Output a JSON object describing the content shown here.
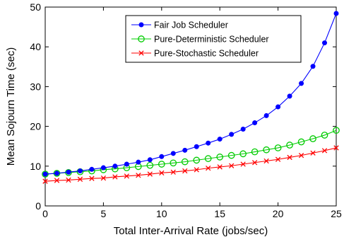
{
  "chart_data": {
    "type": "line",
    "title": "",
    "xlabel": "Total Inter-Arrival Rate (jobs/sec)",
    "ylabel": "Mean Sojourn Time (sec)",
    "xlim": [
      0,
      25
    ],
    "ylim": [
      0,
      50
    ],
    "xticks": [
      0,
      5,
      10,
      15,
      20,
      25
    ],
    "yticks": [
      0,
      10,
      20,
      30,
      40,
      50
    ],
    "grid": false,
    "legend_position": "top-right",
    "x": [
      0,
      1,
      2,
      3,
      4,
      5,
      6,
      7,
      8,
      9,
      10,
      11,
      12,
      13,
      14,
      15,
      16,
      17,
      18,
      19,
      20,
      21,
      22,
      23,
      24,
      25
    ],
    "series": [
      {
        "name": "Fair Job Scheduler",
        "color": "#0000ff",
        "marker": "dot",
        "values": [
          8.0,
          8.2,
          8.5,
          8.8,
          9.2,
          9.6,
          10.0,
          10.5,
          11.0,
          11.6,
          12.4,
          13.2,
          14.0,
          14.9,
          15.8,
          16.8,
          18.0,
          19.3,
          20.9,
          22.7,
          24.9,
          27.6,
          30.8,
          35.1,
          41.0,
          48.4
        ]
      },
      {
        "name": "Pure-Deterministic Scheduler",
        "color": "#00cc00",
        "marker": "circle",
        "values": [
          8.0,
          8.2,
          8.4,
          8.6,
          8.8,
          9.1,
          9.3,
          9.6,
          9.9,
          10.2,
          10.5,
          10.8,
          11.1,
          11.5,
          11.9,
          12.3,
          12.7,
          13.1,
          13.6,
          14.1,
          14.6,
          15.3,
          16.1,
          16.9,
          17.8,
          19.0
        ]
      },
      {
        "name": "Pure-Stochastic Scheduler",
        "color": "#ff0000",
        "marker": "cross",
        "values": [
          6.2,
          6.4,
          6.5,
          6.7,
          6.9,
          7.0,
          7.3,
          7.5,
          7.7,
          8.0,
          8.3,
          8.5,
          8.8,
          9.1,
          9.5,
          9.8,
          10.1,
          10.5,
          10.9,
          11.3,
          11.7,
          12.2,
          12.7,
          13.3,
          13.9,
          14.6
        ]
      }
    ]
  }
}
